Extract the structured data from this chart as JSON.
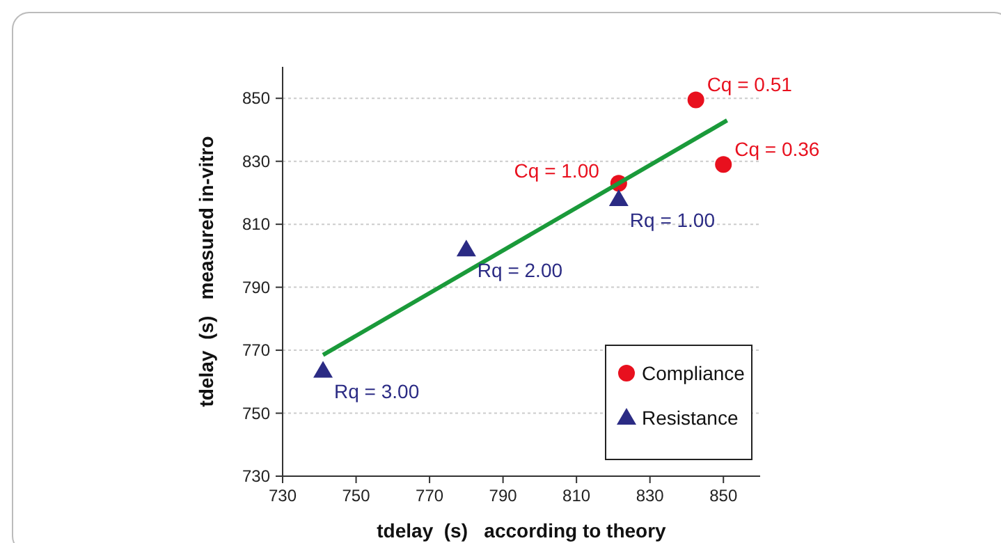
{
  "chart_data": {
    "type": "scatter",
    "xlabel": "tdelay  (s)   according to theory",
    "ylabel": "tdelay  (s)   measured in-vitro",
    "xlim": [
      730,
      860
    ],
    "ylim": [
      730,
      860
    ],
    "xticks": [
      730,
      750,
      770,
      790,
      810,
      830,
      850
    ],
    "yticks": [
      730,
      750,
      770,
      790,
      810,
      830,
      850
    ],
    "grid": "y",
    "legend": "bottom right",
    "series": [
      {
        "name": "Compliance",
        "color": "#e8101e",
        "marker": "circle",
        "x": [
          842.5,
          850,
          821.5
        ],
        "values": [
          849.5,
          829,
          823
        ]
      },
      {
        "name": "Resistance",
        "color": "#2b2b84",
        "marker": "triangle",
        "x": [
          741,
          780,
          821.5
        ],
        "values": [
          763.5,
          802,
          818
        ]
      },
      {
        "type": "line",
        "color": "#1a9a3a",
        "marker": "none",
        "x": [
          741,
          851
        ],
        "values": [
          768.5,
          843
        ]
      }
    ],
    "annotations": [
      {
        "text": "Cq = 0.51",
        "x": 842.5,
        "y": 849.5
      },
      {
        "text": "Cq = 0.36",
        "x": 850,
        "y": 829
      },
      {
        "text": "Cq = 1.00",
        "x": 821.5,
        "y": 823
      },
      {
        "text": "Rq = 1.00",
        "x": 821.5,
        "y": 818
      },
      {
        "text": "Rq = 2.00",
        "x": 780,
        "y": 802
      },
      {
        "text": "Rq = 3.00",
        "x": 741,
        "y": 763.5
      }
    ]
  }
}
